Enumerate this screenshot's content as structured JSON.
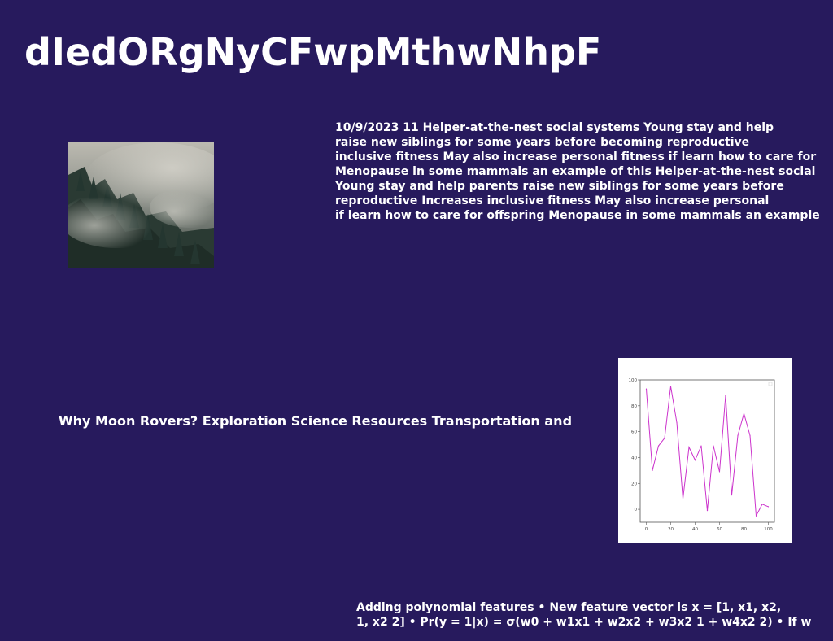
{
  "colors": {
    "background": "#271a5d",
    "text": "#ffffff",
    "chart_line": "#cc33cc"
  },
  "slide": {
    "title": "dIedORgNyCFwpMthwNhpF",
    "text_block_1": {
      "lines": [
        "10/9/2023 11 Helper-at-the-nest social systems Young stay and help",
        "raise new siblings for some years before becoming reproductive",
        "inclusive fitness May also increase personal fitness if learn how to care for",
        "Menopause in some mammals an example of this Helper-at-the-nest social",
        "Young stay and help parents raise new siblings for some years before",
        "reproductive Increases inclusive fitness May also increase personal",
        "if learn how to care for offspring Menopause in some mammals an example"
      ]
    },
    "subtitle": "Why Moon Rovers? Exploration Science Resources Transportation and",
    "text_block_2": {
      "lines": [
        "Adding polynomial features • New feature vector is x = [1, x1, x2,",
        "1, x2 2] • Pr(y = 1|x) = σ(w0 + w1x1 + w2x2 + w3x2 1 + w4x2 2) • If w"
      ]
    },
    "photo_icon": "foggy-forest-photo"
  },
  "chart_data": {
    "type": "line",
    "x": [
      0,
      5,
      10,
      15,
      20,
      25,
      30,
      35,
      40,
      45,
      50,
      55,
      60,
      65,
      70,
      75,
      80,
      85,
      90,
      95,
      100
    ],
    "series": [
      {
        "values": [
          93,
          30,
          49,
          55,
          95,
          67,
          8,
          48,
          38,
          49,
          -1,
          49,
          29,
          88,
          11,
          57,
          74,
          57,
          -5,
          4,
          2
        ]
      }
    ],
    "title": "",
    "xlabel": "",
    "ylabel": "",
    "xlim": [
      -5,
      105
    ],
    "ylim": [
      -10,
      100
    ],
    "x_ticks": [
      "0",
      "20",
      "40",
      "60",
      "80",
      "100"
    ],
    "y_ticks": [
      "0",
      "20",
      "40",
      "60",
      "80",
      "100"
    ],
    "grid": false,
    "legend": "top-right"
  }
}
